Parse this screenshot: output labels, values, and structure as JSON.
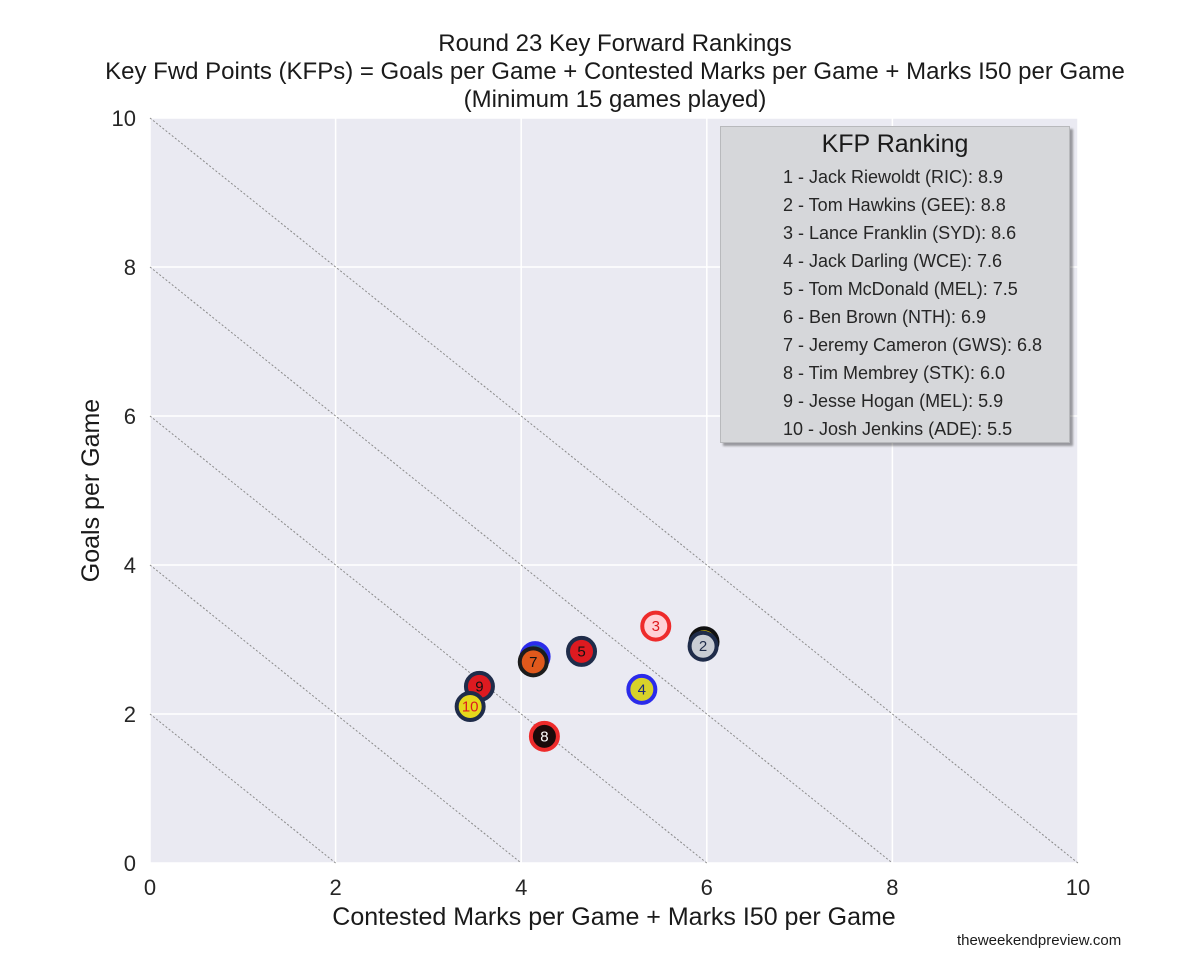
{
  "chart_data": {
    "type": "scatter",
    "title": "Round 23 Key Forward Rankings",
    "subtitle_lines": [
      "Key Fwd Points (KFPs) = Goals per Game + Contested Marks per Game + Marks I50 per Game",
      "(Minimum 15 games played)"
    ],
    "xlabel": "Contested Marks per Game + Marks I50 per Game",
    "ylabel": "Goals per Game",
    "xlim": [
      0,
      10
    ],
    "ylim": [
      0,
      10
    ],
    "xticks": [
      "0",
      "2",
      "4",
      "6",
      "8",
      "10"
    ],
    "yticks": [
      "0",
      "2",
      "4",
      "6",
      "8",
      "10"
    ],
    "grid": true,
    "background_color": "#eaeaf2",
    "reference_lines": [
      2,
      4,
      6,
      8,
      10
    ],
    "legend": {
      "title": "KFP Ranking",
      "placement": "top-right",
      "entries": [
        "1 - Jack Riewoldt (RIC): 8.9",
        "2 - Tom Hawkins (GEE): 8.8",
        "3 - Lance Franklin (SYD): 8.6",
        "4 - Jack Darling (WCE): 7.6",
        "5 - Tom McDonald (MEL): 7.5",
        "6 - Ben Brown (NTH): 6.9",
        "7 - Jeremy Cameron (GWS): 6.8",
        "8 - Tim Membrey (STK): 6.0",
        "9 - Jesse Hogan (MEL): 5.9",
        "10 - Josh Jenkins (ADE): 5.5"
      ]
    },
    "points": [
      {
        "label": "6",
        "x": 4.15,
        "y": 2.77,
        "fill": "#1b5ea8",
        "edge": "#2b2bea",
        "text": "#111111"
      },
      {
        "label": "7",
        "x": 4.13,
        "y": 2.7,
        "fill": "#e0591c",
        "edge": "#1c1c1c",
        "text": "#111111"
      },
      {
        "label": "5",
        "x": 4.65,
        "y": 2.84,
        "fill": "#dd1a20",
        "edge": "#1f2c4a",
        "text": "#111111"
      },
      {
        "label": "3",
        "x": 5.45,
        "y": 3.18,
        "fill": "#ffd1d6",
        "edge": "#ee2b2b",
        "text": "#dd1a20"
      },
      {
        "label": "1",
        "x": 5.97,
        "y": 2.97,
        "fill": "#f5d800",
        "edge": "#111111",
        "text": "#111111"
      },
      {
        "label": "2",
        "x": 5.96,
        "y": 2.91,
        "fill": "#c9cdd4",
        "edge": "#1f2c4a",
        "text": "#1f2c4a"
      },
      {
        "label": "4",
        "x": 5.3,
        "y": 2.33,
        "fill": "#d8d22a",
        "edge": "#2b2bea",
        "text": "#1a2a7a"
      },
      {
        "label": "9",
        "x": 3.55,
        "y": 2.37,
        "fill": "#dd1a20",
        "edge": "#1f2c4a",
        "text": "#111111"
      },
      {
        "label": "10",
        "x": 3.45,
        "y": 2.1,
        "fill": "#e6d81c",
        "edge": "#1f2c4a",
        "text": "#dd1a20"
      },
      {
        "label": "8",
        "x": 4.25,
        "y": 1.7,
        "fill": "#1c0a0a",
        "edge": "#ee2b2b",
        "text": "#ffffff"
      }
    ]
  },
  "credit": "theweekendpreview.com"
}
